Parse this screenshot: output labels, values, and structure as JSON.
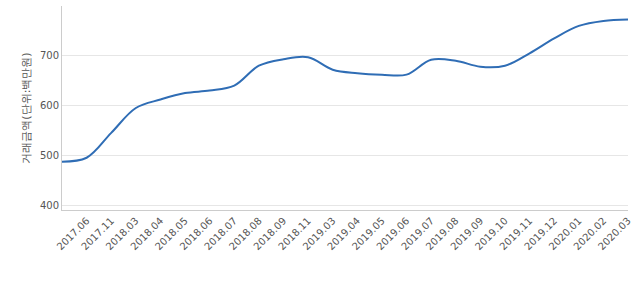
{
  "chart_data": {
    "type": "line",
    "y_label": "거래금액(단위:백만원)",
    "categories": [
      null,
      "2017.06",
      "2017.11",
      "2018.03",
      "2018.04",
      "2018.05",
      "2018.06",
      "2018.07",
      "2018.08",
      "2018.09",
      "2018.11",
      "2019.03",
      "2019.04",
      "2019.05",
      "2019.06",
      "2019.07",
      "2019.08",
      "2019.09",
      "2019.10",
      "2019.11",
      "2019.12",
      "2020.01",
      "2020.02",
      "2020.03"
    ],
    "values": [
      487,
      495,
      545,
      595,
      612,
      625,
      630,
      640,
      680,
      693,
      697,
      672,
      665,
      662,
      662,
      692,
      690,
      678,
      680,
      705,
      735,
      760,
      770,
      773
    ],
    "color": "#2f6db5",
    "line_style": "spline",
    "ylim": [
      390,
      800
    ],
    "yticks": [
      400,
      500,
      600,
      700
    ],
    "grid": true
  }
}
